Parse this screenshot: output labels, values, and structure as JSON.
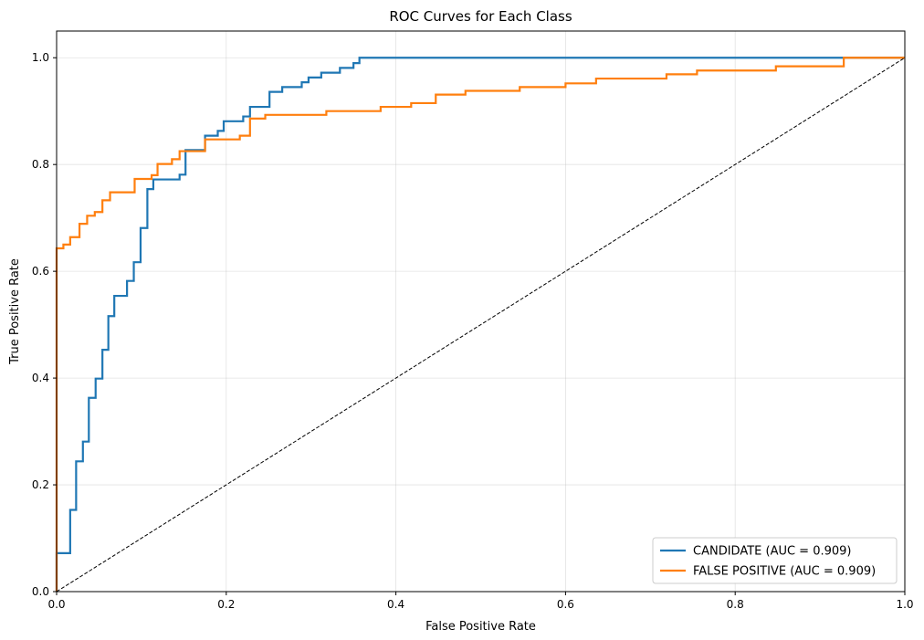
{
  "chart_data": {
    "type": "line",
    "title": "ROC Curves for Each Class",
    "xlabel": "False Positive Rate",
    "ylabel": "True Positive Rate",
    "xlim": [
      0,
      1
    ],
    "ylim": [
      0,
      1.05
    ],
    "xticks": [
      "0.0",
      "0.2",
      "0.4",
      "0.6",
      "0.8",
      "1.0"
    ],
    "yticks": [
      "0.0",
      "0.2",
      "0.4",
      "0.6",
      "0.8",
      "1.0"
    ],
    "grid": true,
    "legend_position": "lower right",
    "series": [
      {
        "name": "CANDIDATE (AUC = 0.909)",
        "color": "#1f77b4",
        "style": "step",
        "points": [
          [
            0,
            0
          ],
          [
            0,
            0.072
          ],
          [
            0.016,
            0.072
          ],
          [
            0.016,
            0.153
          ],
          [
            0.023,
            0.153
          ],
          [
            0.023,
            0.244
          ],
          [
            0.031,
            0.244
          ],
          [
            0.031,
            0.281
          ],
          [
            0.038,
            0.281
          ],
          [
            0.038,
            0.363
          ],
          [
            0.046,
            0.363
          ],
          [
            0.046,
            0.399
          ],
          [
            0.054,
            0.399
          ],
          [
            0.054,
            0.453
          ],
          [
            0.061,
            0.453
          ],
          [
            0.061,
            0.516
          ],
          [
            0.068,
            0.516
          ],
          [
            0.068,
            0.554
          ],
          [
            0.083,
            0.554
          ],
          [
            0.083,
            0.582
          ],
          [
            0.091,
            0.582
          ],
          [
            0.091,
            0.617
          ],
          [
            0.099,
            0.617
          ],
          [
            0.099,
            0.681
          ],
          [
            0.107,
            0.681
          ],
          [
            0.107,
            0.754
          ],
          [
            0.114,
            0.754
          ],
          [
            0.114,
            0.772
          ],
          [
            0.145,
            0.772
          ],
          [
            0.145,
            0.781
          ],
          [
            0.152,
            0.781
          ],
          [
            0.152,
            0.827
          ],
          [
            0.175,
            0.827
          ],
          [
            0.175,
            0.854
          ],
          [
            0.19,
            0.854
          ],
          [
            0.19,
            0.863
          ],
          [
            0.197,
            0.863
          ],
          [
            0.197,
            0.881
          ],
          [
            0.22,
            0.881
          ],
          [
            0.22,
            0.89
          ],
          [
            0.228,
            0.89
          ],
          [
            0.228,
            0.908
          ],
          [
            0.251,
            0.908
          ],
          [
            0.251,
            0.936
          ],
          [
            0.266,
            0.936
          ],
          [
            0.266,
            0.945
          ],
          [
            0.289,
            0.945
          ],
          [
            0.289,
            0.954
          ],
          [
            0.297,
            0.954
          ],
          [
            0.297,
            0.963
          ],
          [
            0.312,
            0.963
          ],
          [
            0.312,
            0.972
          ],
          [
            0.334,
            0.972
          ],
          [
            0.334,
            0.981
          ],
          [
            0.35,
            0.981
          ],
          [
            0.35,
            0.99
          ],
          [
            0.357,
            0.99
          ],
          [
            0.357,
            1.0
          ],
          [
            1,
            1.0
          ]
        ]
      },
      {
        "name": "FALSE POSITIVE (AUC = 0.909)",
        "color": "#ff7f0e",
        "style": "step",
        "points": [
          [
            0,
            0
          ],
          [
            0,
            0.643
          ],
          [
            0.008,
            0.643
          ],
          [
            0.008,
            0.65
          ],
          [
            0.016,
            0.65
          ],
          [
            0.016,
            0.664
          ],
          [
            0.027,
            0.664
          ],
          [
            0.027,
            0.689
          ],
          [
            0.036,
            0.689
          ],
          [
            0.036,
            0.704
          ],
          [
            0.045,
            0.704
          ],
          [
            0.045,
            0.711
          ],
          [
            0.054,
            0.711
          ],
          [
            0.054,
            0.733
          ],
          [
            0.063,
            0.733
          ],
          [
            0.063,
            0.748
          ],
          [
            0.092,
            0.748
          ],
          [
            0.092,
            0.773
          ],
          [
            0.112,
            0.773
          ],
          [
            0.112,
            0.78
          ],
          [
            0.119,
            0.78
          ],
          [
            0.119,
            0.801
          ],
          [
            0.136,
            0.801
          ],
          [
            0.136,
            0.81
          ],
          [
            0.145,
            0.81
          ],
          [
            0.145,
            0.825
          ],
          [
            0.175,
            0.825
          ],
          [
            0.175,
            0.847
          ],
          [
            0.216,
            0.847
          ],
          [
            0.216,
            0.854
          ],
          [
            0.228,
            0.854
          ],
          [
            0.228,
            0.886
          ],
          [
            0.246,
            0.886
          ],
          [
            0.246,
            0.893
          ],
          [
            0.318,
            0.893
          ],
          [
            0.318,
            0.9
          ],
          [
            0.382,
            0.9
          ],
          [
            0.382,
            0.908
          ],
          [
            0.418,
            0.908
          ],
          [
            0.418,
            0.915
          ],
          [
            0.447,
            0.915
          ],
          [
            0.447,
            0.931
          ],
          [
            0.482,
            0.931
          ],
          [
            0.482,
            0.938
          ],
          [
            0.546,
            0.938
          ],
          [
            0.546,
            0.945
          ],
          [
            0.6,
            0.945
          ],
          [
            0.6,
            0.952
          ],
          [
            0.636,
            0.952
          ],
          [
            0.636,
            0.961
          ],
          [
            0.719,
            0.961
          ],
          [
            0.719,
            0.969
          ],
          [
            0.755,
            0.969
          ],
          [
            0.755,
            0.976
          ],
          [
            0.848,
            0.976
          ],
          [
            0.848,
            0.984
          ],
          [
            0.928,
            0.984
          ],
          [
            0.928,
            1.0
          ],
          [
            1,
            1.0
          ]
        ]
      },
      {
        "name": "",
        "color": "#000000",
        "style": "dashed",
        "points": [
          [
            0,
            0
          ],
          [
            1,
            1
          ]
        ]
      }
    ]
  }
}
